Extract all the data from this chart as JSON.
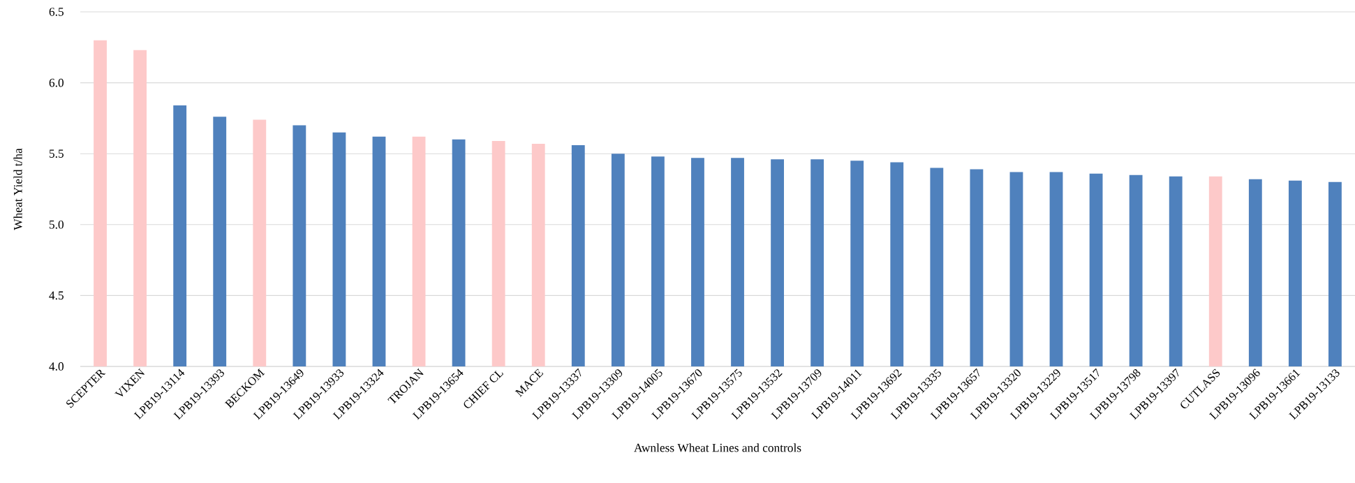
{
  "chart_data": {
    "type": "bar",
    "xlabel": "Awnless Wheat Lines and controls",
    "ylabel": "Wheat Yield t/ha",
    "categories": [
      "SCEPTER",
      "VIXEN",
      "LPB19-13114",
      "LPB19-13393",
      "BECKOM",
      "LPB19-13649",
      "LPB19-13933",
      "LPB19-13324",
      "TROJAN",
      "LPB19-13654",
      "CHIEF CL",
      "MACE",
      "LPB19-13337",
      "LPB19-13309",
      "LPB19-14005",
      "LPB19-13670",
      "LPB19-13575",
      "LPB19-13532",
      "LPB19-13709",
      "LPB19-14011",
      "LPB19-13692",
      "LPB19-13335",
      "LPB19-13657",
      "LPB19-13320",
      "LPB19-13229",
      "LPB19-13517",
      "LPB19-13798",
      "LPB19-13397",
      "CUTLASS",
      "LPB19-13096",
      "LPB19-13661",
      "LPB19-13133"
    ],
    "values": [
      6.3,
      6.23,
      5.84,
      5.76,
      5.74,
      5.7,
      5.65,
      5.62,
      5.62,
      5.6,
      5.59,
      5.57,
      5.56,
      5.5,
      5.48,
      5.47,
      5.47,
      5.46,
      5.46,
      5.45,
      5.44,
      5.4,
      5.39,
      5.37,
      5.37,
      5.36,
      5.35,
      5.34,
      5.34,
      5.32,
      5.31,
      5.3
    ],
    "colors": [
      "#fdc9c9",
      "#fdc9c9",
      "#4f81bd",
      "#4f81bd",
      "#fdc9c9",
      "#4f81bd",
      "#4f81bd",
      "#4f81bd",
      "#fdc9c9",
      "#4f81bd",
      "#fdc9c9",
      "#fdc9c9",
      "#4f81bd",
      "#4f81bd",
      "#4f81bd",
      "#4f81bd",
      "#4f81bd",
      "#4f81bd",
      "#4f81bd",
      "#4f81bd",
      "#4f81bd",
      "#4f81bd",
      "#4f81bd",
      "#4f81bd",
      "#4f81bd",
      "#4f81bd",
      "#4f81bd",
      "#4f81bd",
      "#fdc9c9",
      "#4f81bd",
      "#4f81bd",
      "#4f81bd"
    ],
    "ylim": [
      4.0,
      6.5
    ],
    "yticks": [
      {
        "value": 4.0,
        "label": "4.0"
      },
      {
        "value": 4.5,
        "label": "4.5"
      },
      {
        "value": 5.0,
        "label": "5.0"
      },
      {
        "value": 5.5,
        "label": "5.5"
      },
      {
        "value": 6.0,
        "label": "6.0"
      },
      {
        "value": 6.5,
        "label": "6.5"
      }
    ],
    "grid": "y"
  }
}
